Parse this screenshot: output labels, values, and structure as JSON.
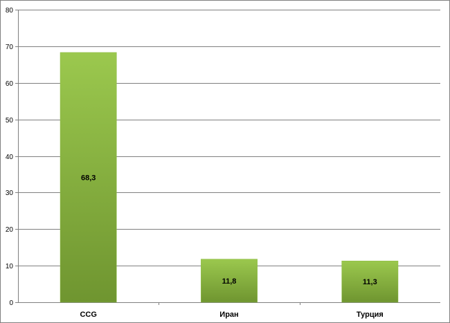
{
  "chart_data": {
    "type": "bar",
    "title": "",
    "xlabel": "",
    "ylabel": "",
    "categories": [
      "CCG",
      "Иран",
      "Турция"
    ],
    "values": [
      68.3,
      11.8,
      11.3
    ],
    "data_labels": [
      "68,3",
      "11,8",
      "11,3"
    ],
    "ylim": [
      0,
      80
    ],
    "yticks": [
      0,
      10,
      20,
      30,
      40,
      50,
      60,
      70,
      80
    ],
    "grid": true,
    "legend": "none",
    "colors": {
      "bar_top": "#9bc84e",
      "bar_bottom": "#6f9530",
      "grid": "#7f7f7f"
    }
  }
}
